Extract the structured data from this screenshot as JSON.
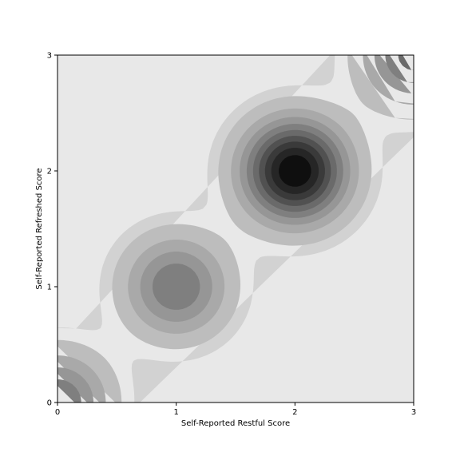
{
  "chart_data": {
    "type": "contour",
    "title": "",
    "xlabel": "Self-Reported Restful Score",
    "ylabel": "Self-Reported Refreshed Score",
    "xlim": [
      0,
      3
    ],
    "ylim": [
      0,
      3
    ],
    "xticks": [
      0,
      1,
      2,
      3
    ],
    "yticks": [
      0,
      1,
      2,
      3
    ],
    "x_tick_labels": [
      "0",
      "1",
      "2",
      "3"
    ],
    "y_tick_labels": [
      "0",
      "1",
      "2",
      "3"
    ],
    "grid": false,
    "colormap": "greys",
    "density_peaks": [
      {
        "x": 0,
        "y": 0,
        "relative_density": 0.5
      },
      {
        "x": 1,
        "y": 1,
        "relative_density": 0.5
      },
      {
        "x": 2,
        "y": 2,
        "relative_density": 1.0
      },
      {
        "x": 3,
        "y": 3,
        "relative_density": 0.55
      }
    ],
    "contour_levels": [
      0.05,
      0.1,
      0.2,
      0.3,
      0.4,
      0.5,
      0.6,
      0.7,
      0.8,
      0.9
    ],
    "level_colors": [
      "#e8e8e8",
      "#d2d2d2",
      "#bdbdbd",
      "#a9a9a9",
      "#969696",
      "#7f7f7f",
      "#6a6a6a",
      "#515151",
      "#3a3a3a",
      "#262626",
      "#0f0f0f"
    ]
  }
}
